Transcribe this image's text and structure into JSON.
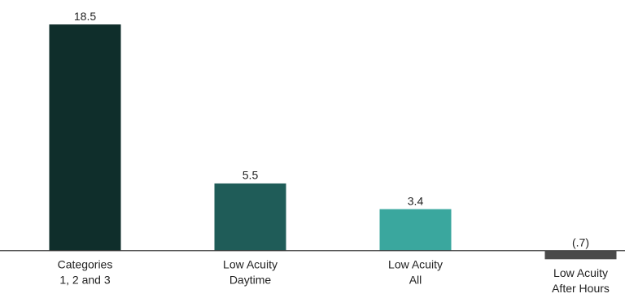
{
  "chart_data": {
    "type": "bar",
    "categories": [
      [
        "Categories",
        "1, 2 and 3"
      ],
      [
        "Low Acuity",
        "Daytime"
      ],
      [
        "Low Acuity",
        "All"
      ],
      [
        "Low Acuity",
        "After Hours"
      ]
    ],
    "values": [
      18.5,
      5.5,
      3.4,
      -0.7
    ],
    "value_labels": [
      "18.5",
      "5.5",
      "3.4",
      "(.7)"
    ],
    "colors": [
      "#0f2e2b",
      "#1f5c58",
      "#3aa79e",
      "#4a4a4a"
    ],
    "ylim": [
      -3.8,
      20.5
    ]
  }
}
